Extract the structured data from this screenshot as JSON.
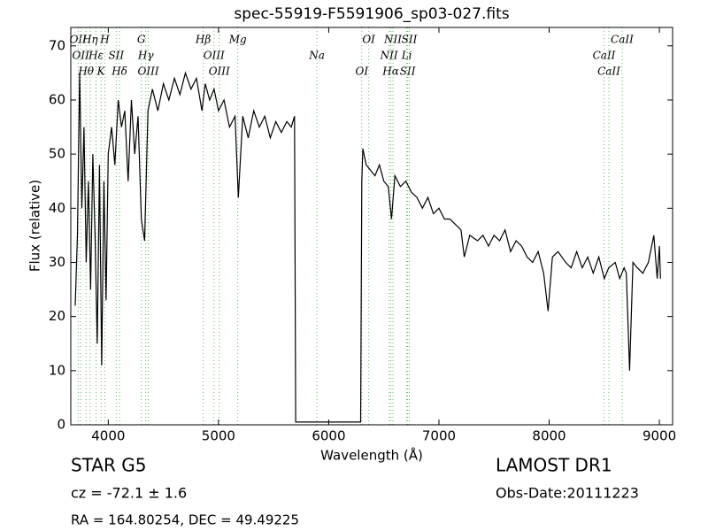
{
  "chart_data": {
    "type": "line",
    "title": "spec-55919-F5591906_sp03-027.fits",
    "x_label": "Wavelength (Å)",
    "y_label": "Flux (relative)",
    "xlim": [
      3660,
      9120
    ],
    "ylim": [
      0,
      73.4
    ],
    "xticks": [
      4000,
      5000,
      6000,
      7000,
      8000,
      9000
    ],
    "yticks": [
      0,
      10,
      20,
      30,
      40,
      50,
      60,
      70
    ],
    "series": [
      {
        "name": "spectrum",
        "color": "#000000",
        "x": [
          3700,
          3720,
          3740,
          3760,
          3780,
          3800,
          3820,
          3840,
          3860,
          3880,
          3900,
          3920,
          3940,
          3960,
          3980,
          4000,
          4030,
          4060,
          4090,
          4120,
          4150,
          4180,
          4210,
          4240,
          4270,
          4300,
          4330,
          4360,
          4400,
          4450,
          4500,
          4550,
          4600,
          4650,
          4700,
          4750,
          4800,
          4850,
          4880,
          4920,
          4960,
          5000,
          5050,
          5100,
          5150,
          5180,
          5220,
          5270,
          5320,
          5370,
          5420,
          5470,
          5520,
          5570,
          5620,
          5660,
          5690,
          5700,
          6290,
          6300,
          6310,
          6340,
          6380,
          6420,
          6460,
          6500,
          6540,
          6570,
          6600,
          6650,
          6700,
          6750,
          6800,
          6850,
          6900,
          6950,
          7000,
          7050,
          7100,
          7150,
          7200,
          7230,
          7280,
          7350,
          7400,
          7450,
          7500,
          7550,
          7600,
          7650,
          7700,
          7750,
          7800,
          7850,
          7900,
          7950,
          7990,
          8030,
          8080,
          8150,
          8200,
          8250,
          8300,
          8350,
          8400,
          8450,
          8500,
          8540,
          8600,
          8640,
          8680,
          8700,
          8730,
          8760,
          8800,
          8850,
          8900,
          8950,
          8980,
          9000,
          9010
        ],
        "values": [
          22,
          35,
          65,
          40,
          55,
          30,
          45,
          25,
          50,
          35,
          15,
          48,
          11,
          45,
          23,
          50,
          55,
          48,
          60,
          55,
          58,
          45,
          60,
          50,
          57,
          38,
          34,
          58,
          62,
          58,
          63,
          60,
          64,
          61,
          65,
          62,
          64,
          58,
          63,
          60,
          62,
          58,
          60,
          55,
          57,
          42,
          57,
          53,
          58,
          55,
          57,
          53,
          56,
          54,
          56,
          55,
          57,
          0.5,
          0.5,
          45,
          51,
          48,
          47,
          46,
          48,
          45,
          44,
          38,
          46,
          44,
          45,
          43,
          42,
          40,
          42,
          39,
          40,
          38,
          38,
          37,
          36,
          31,
          35,
          34,
          35,
          33,
          35,
          34,
          36,
          32,
          34,
          33,
          31,
          30,
          32,
          28,
          21,
          31,
          32,
          30,
          29,
          32,
          29,
          31,
          28,
          31,
          27,
          29,
          30,
          27,
          29,
          28,
          10,
          30,
          29,
          28,
          30,
          35,
          27,
          33,
          27
        ]
      }
    ],
    "line_markers": {
      "color": "#5cb85c",
      "x": [
        3727,
        3750,
        3798,
        3835,
        3889,
        3934,
        3969,
        4072,
        4102,
        4300,
        4340,
        4363,
        4861,
        4959,
        5007,
        5175,
        5893,
        6300,
        6363,
        6548,
        6563,
        6583,
        6708,
        6716,
        6731,
        8498,
        8542,
        8662
      ],
      "labels": [
        "OII",
        "OII",
        "Hθ",
        "Hη",
        "Hε",
        "K",
        "H",
        "SII",
        "Hδ",
        "G",
        "Hγ",
        "OIII",
        "Hβ",
        "OIII",
        "OIII",
        "Mg",
        "Na",
        "OI",
        "OI",
        "NII",
        "Hα",
        "NII",
        "Li",
        "SII",
        "SII",
        "CaII",
        "CaII",
        "CaII"
      ]
    },
    "annotations": [
      "STAR   G5",
      "cz = -72.1 ± 1.6",
      "RA = 164.80254, DEC = 49.49225",
      "LAMOST DR1",
      "Obs-Date:20111223"
    ]
  }
}
